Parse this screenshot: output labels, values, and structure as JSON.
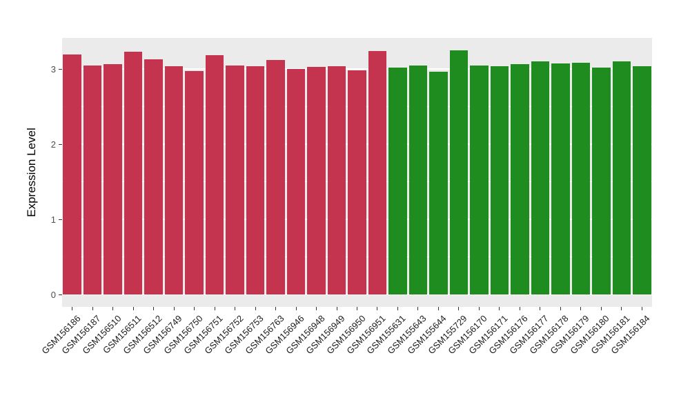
{
  "chart_data": {
    "type": "bar",
    "title": "",
    "xlabel": "",
    "ylabel": "Expression Level",
    "ylim": [
      0,
      3.42
    ],
    "yticks": [
      0,
      1,
      2,
      3
    ],
    "yticks_minor": [
      0.5,
      1.5,
      2.5
    ],
    "grid": "on",
    "legend_position": "none",
    "panel_background": "#EBEBEB",
    "categories": [
      "GSM156186",
      "GSM156187",
      "GSM156510",
      "GSM156511",
      "GSM156512",
      "GSM156749",
      "GSM156750",
      "GSM156751",
      "GSM156752",
      "GSM156753",
      "GSM156763",
      "GSM156946",
      "GSM156948",
      "GSM156949",
      "GSM156950",
      "GSM156951",
      "GSM155631",
      "GSM155643",
      "GSM155644",
      "GSM155729",
      "GSM156170",
      "GSM156171",
      "GSM156176",
      "GSM156177",
      "GSM156178",
      "GSM156179",
      "GSM156180",
      "GSM156181",
      "GSM156184"
    ],
    "values": [
      3.19,
      3.05,
      3.06,
      3.23,
      3.13,
      3.04,
      2.97,
      3.18,
      3.05,
      3.04,
      3.12,
      3.0,
      3.03,
      3.04,
      2.98,
      3.24,
      3.02,
      3.05,
      2.96,
      3.25,
      3.05,
      3.04,
      3.06,
      3.1,
      3.07,
      3.08,
      3.02,
      3.1,
      3.04
    ],
    "groups": [
      "red",
      "red",
      "red",
      "red",
      "red",
      "red",
      "red",
      "red",
      "red",
      "red",
      "red",
      "red",
      "red",
      "red",
      "red",
      "red",
      "green",
      "green",
      "green",
      "green",
      "green",
      "green",
      "green",
      "green",
      "green",
      "green",
      "green",
      "green",
      "green"
    ],
    "group_colors": {
      "red": "#C5344E",
      "green": "#1F8C1F"
    },
    "bar_width_fraction": 0.9
  }
}
